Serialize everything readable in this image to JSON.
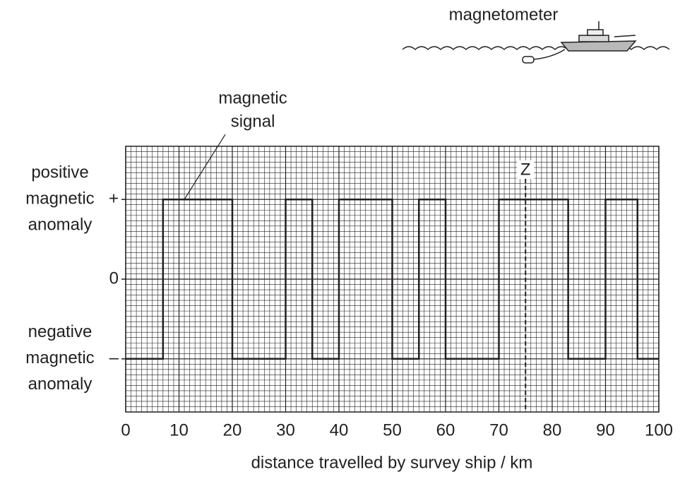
{
  "chart_data": {
    "type": "line",
    "xlabel": "distance travelled by survey ship / km",
    "x": [
      0,
      7,
      7,
      20,
      20,
      30,
      30,
      35,
      35,
      40,
      40,
      50,
      50,
      55,
      55,
      60,
      60,
      70,
      70,
      83,
      83,
      90,
      90,
      96,
      96,
      100
    ],
    "series": [
      {
        "name": "magnetic signal",
        "color": "#231f20",
        "values": [
          -15,
          -15,
          15,
          15,
          -15,
          -15,
          15,
          15,
          -15,
          -15,
          15,
          15,
          -15,
          -15,
          15,
          15,
          -15,
          -15,
          15,
          15,
          -15,
          -15,
          15,
          15,
          -15,
          -15
        ]
      }
    ],
    "xlim": [
      0,
      100
    ],
    "xticks": [
      0,
      10,
      20,
      30,
      40,
      50,
      60,
      70,
      80,
      90,
      100
    ],
    "ylim": [
      -25,
      25
    ],
    "yticks": [
      {
        "value": 15,
        "label": "+"
      },
      0,
      {
        "value": -15,
        "label": "–"
      }
    ],
    "ytick_notes": [
      [
        "positive",
        "magnetic",
        "anomaly"
      ],
      null,
      [
        "negative",
        "magnetic",
        "anomaly"
      ]
    ],
    "minor_grid": {
      "x": 1,
      "y": 1
    },
    "grid": true,
    "annotations": [
      {
        "text": [
          "magnetic",
          "signal"
        ],
        "x": 11,
        "y": 15
      }
    ],
    "markers": [
      {
        "label": "Z",
        "x": 75
      }
    ],
    "illustration_label": "magnetometer"
  }
}
